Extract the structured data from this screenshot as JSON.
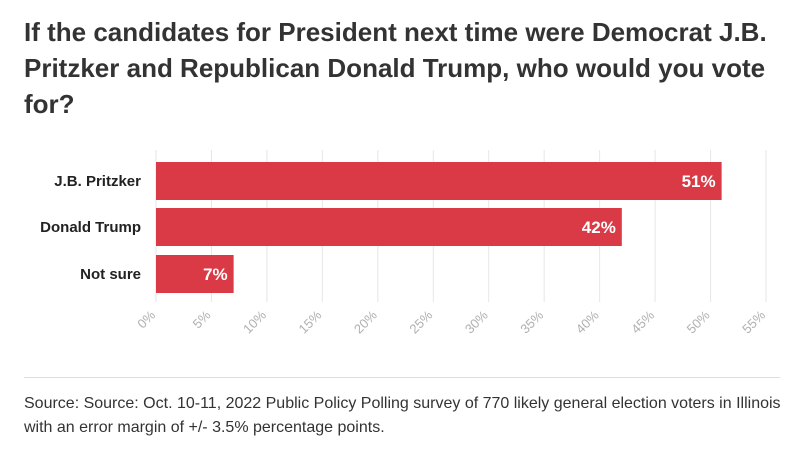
{
  "title": "If the candidates for President next time were Democrat J.B. Pritzker and Republican Donald Trump, who would you vote for?",
  "source": "Source: Source: Oct. 10-11, 2022 Public Policy Polling survey of 770 likely general election voters in Illinois with an error margin of +/- 3.5% percentage points.",
  "chart_data": {
    "type": "bar",
    "orientation": "horizontal",
    "title": "If the candidates for President next time were Democrat J.B. Pritzker and Republican Donald Trump, who would you vote for?",
    "categories": [
      "J.B. Pritzker",
      "Donald Trump",
      "Not sure"
    ],
    "values": [
      51,
      42,
      7
    ],
    "value_labels": [
      "51%",
      "42%",
      "7%"
    ],
    "xlim": [
      0,
      55
    ],
    "x_ticks": [
      0,
      5,
      10,
      15,
      20,
      25,
      30,
      35,
      40,
      45,
      50,
      55
    ],
    "x_tick_labels": [
      "0%",
      "5%",
      "10%",
      "15%",
      "20%",
      "25%",
      "30%",
      "35%",
      "40%",
      "45%",
      "50%",
      "55%"
    ],
    "xlabel": "",
    "ylabel": "",
    "grid": true,
    "bar_color": "#d93a46",
    "grid_color": "#e6e6e6",
    "tick_label_color": "#b0b0b0"
  }
}
